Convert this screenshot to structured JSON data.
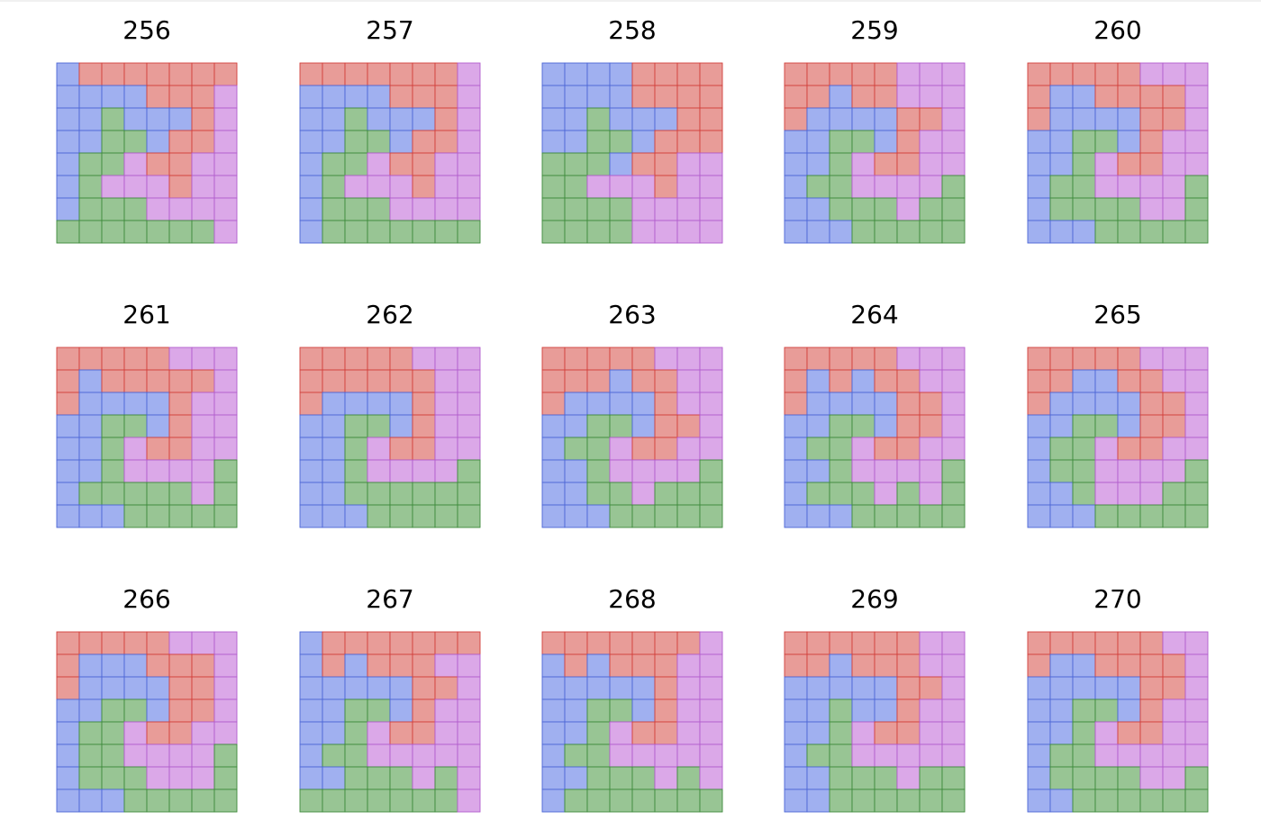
{
  "colors": {
    "R": {
      "fill": "#e89c98",
      "stroke": "#d23f3a"
    },
    "B": {
      "fill": "#a0b0f0",
      "stroke": "#4c66d6"
    },
    "G": {
      "fill": "#98c594",
      "stroke": "#3e8a3b"
    },
    "P": {
      "fill": "#dba8e8",
      "stroke": "#b25ccc"
    }
  },
  "panels": [
    {
      "label": "256",
      "grid": [
        "BRRRRRRR",
        "BBBBRRRP",
        "BBGBBBRP",
        "BBGGBRRP",
        "BGGPRRPP",
        "BGPPPRPP",
        "BGGGPPPP",
        "GGGGGGGP"
      ]
    },
    {
      "label": "257",
      "grid": [
        "RRRRRRRP",
        "BBBBRRRP",
        "BBGBBBRP",
        "BBGGBRRP",
        "BGGPRRPP",
        "BGPPPRPP",
        "BGGGPPPP",
        "BGGGGGGG"
      ]
    },
    {
      "label": "258",
      "grid": [
        "BBBBRRRR",
        "BBBBRRRR",
        "BBGBBBRR",
        "BBGGBRRR",
        "GGGBRRPP",
        "GGPPPRPP",
        "GGGGPPPP",
        "GGGGPPPP"
      ]
    },
    {
      "label": "259",
      "grid": [
        "RRRRRPPP",
        "RRBRRPPP",
        "RBBBBRRP",
        "BBGGBRPP",
        "BBGPRRPP",
        "BGGPPPPG",
        "BBGGGPGG",
        "BBBGGGGG"
      ]
    },
    {
      "label": "260",
      "grid": [
        "RRRRRPPP",
        "RBBRRRRP",
        "RBBBBRRP",
        "BBGGBRPP",
        "BBGPRRPP",
        "BGGPPPPG",
        "BGGGGPPG",
        "BBBGGGGG"
      ]
    },
    {
      "label": "261",
      "grid": [
        "RRRRRPPP",
        "RBRRRRRP",
        "RBBBBRPP",
        "BBGGBRPP",
        "BBGPRRPP",
        "BBGPPPPG",
        "BGGGGGPG",
        "BBBGGGGG"
      ]
    },
    {
      "label": "262",
      "grid": [
        "RRRRRPPP",
        "RRRRRRPP",
        "RBBBBRPP",
        "BBGGBRPP",
        "BBGPRRPP",
        "BBGPPPPG",
        "BBGGGGGG",
        "BBBGGGGG"
      ]
    },
    {
      "label": "263",
      "grid": [
        "RRRRRPPP",
        "RRRBRRPP",
        "RBBBBRPP",
        "BBGGBRRP",
        "BGGPRRPP",
        "BBGPPPPG",
        "BBGGPGGG",
        "BBBGGGGG"
      ]
    },
    {
      "label": "264",
      "grid": [
        "RRRRRPPP",
        "RBRBRRPP",
        "RBBBBRRP",
        "BBGGBRRP",
        "BGGPRRPP",
        "BBGPPPPG",
        "BGGGPGPG",
        "BBBGGGGG"
      ]
    },
    {
      "label": "265",
      "grid": [
        "RRRRRPPP",
        "RRBBRRPP",
        "RBBBBRRP",
        "BBGGBRRP",
        "BGGPRRPP",
        "BGGPPPPG",
        "BBGPPPGG",
        "BBBGGGGG"
      ]
    },
    {
      "label": "266",
      "grid": [
        "RRRRRPPP",
        "RBBBRRRP",
        "RBBBBRRP",
        "BBGGBRRP",
        "BGGPRRPP",
        "BGGPPPPG",
        "BGGGPPPG",
        "BBBGGGGG"
      ]
    },
    {
      "label": "267",
      "grid": [
        "BRRRRRRR",
        "BRBRRRPP",
        "BBBBBRRP",
        "BBGGBRPP",
        "BBGPRRPP",
        "BGGPPPPP",
        "BBGGGPGP",
        "GGGGGGGP"
      ]
    },
    {
      "label": "268",
      "grid": [
        "RRRRRRRP",
        "BRBRRRPP",
        "BBBBBRPP",
        "BBGGBRPP",
        "BBGPRRPP",
        "BGGPPPPP",
        "BBGGGPGP",
        "BGGGGGGG"
      ]
    },
    {
      "label": "269",
      "grid": [
        "RRRRRRPP",
        "RRBRRRPP",
        "BBBBBRRP",
        "BBGBBRPP",
        "BBGPRRPP",
        "BGGPPPPP",
        "BBGGGPGG",
        "BBGGGGGG"
      ]
    },
    {
      "label": "270",
      "grid": [
        "RRRRRRPP",
        "RBBRRRRP",
        "BBBBBRRP",
        "BBGGBRPP",
        "BBGPRRPP",
        "BGGPPPPP",
        "BGGGGPPG",
        "BBGGGGGG"
      ]
    }
  ]
}
